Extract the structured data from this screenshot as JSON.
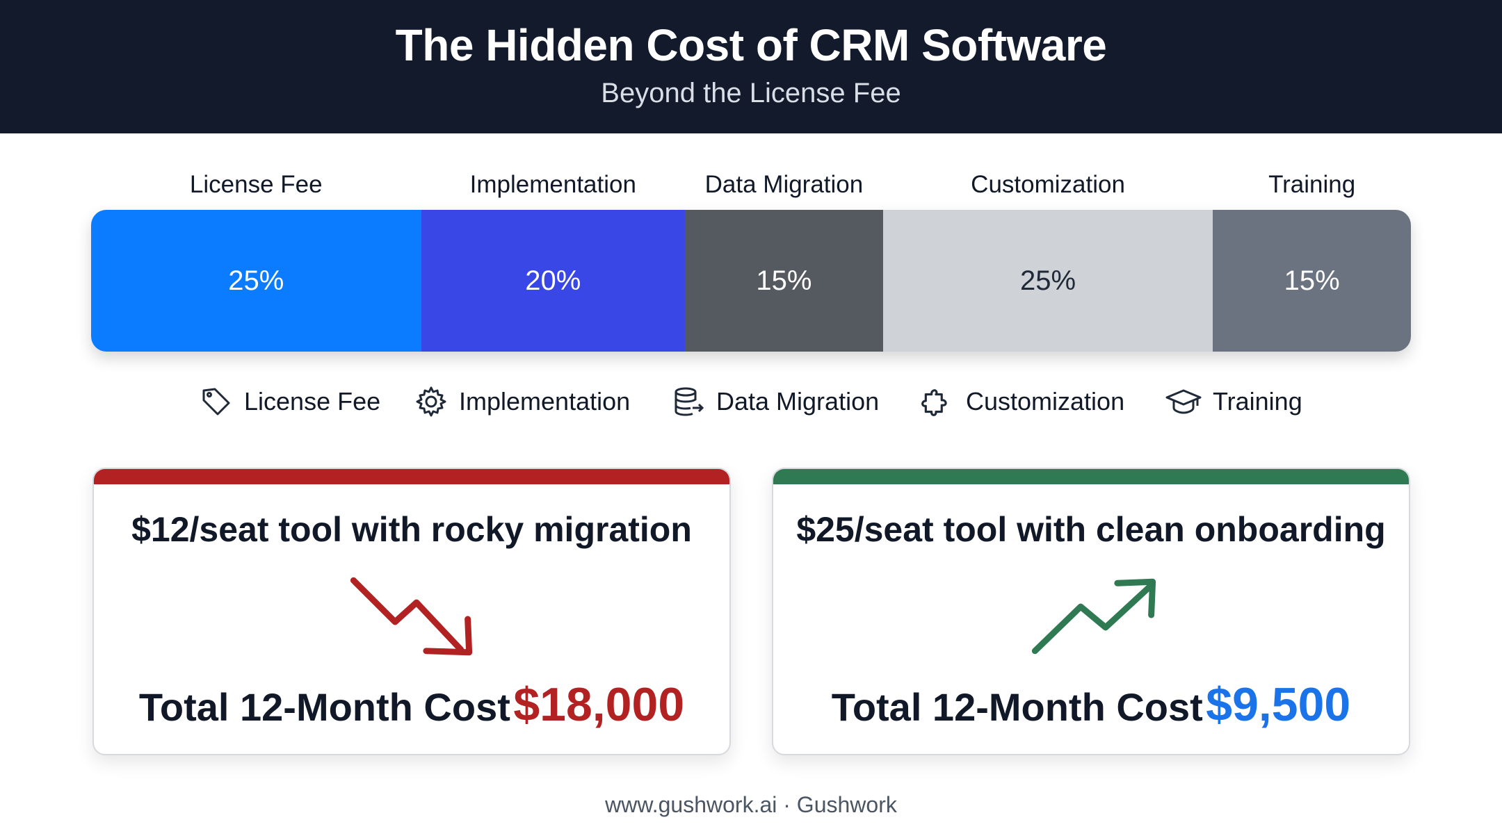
{
  "header": {
    "title": "The Hidden Cost of CRM Software",
    "subtitle": "Beyond the License Fee"
  },
  "chart_data": {
    "type": "bar",
    "orientation": "stacked-horizontal-100",
    "categories": [
      "License Fee",
      "Implementation",
      "Data Migration",
      "Customization",
      "Training"
    ],
    "values": [
      25,
      20,
      15,
      25,
      15
    ],
    "value_labels": [
      "25%",
      "20%",
      "15%",
      "25%",
      "15%"
    ],
    "unit": "%",
    "colors": [
      "#0b7bff",
      "#3847e6",
      "#555a60",
      "#cfd2d6",
      "#6b7280"
    ],
    "text_colors": [
      "#ffffff",
      "#ffffff",
      "#ffffff",
      "#1f2937",
      "#ffffff"
    ],
    "legend_position": "bottom"
  },
  "legend": [
    {
      "label": "License Fee",
      "icon": "tag-icon"
    },
    {
      "label": "Implementation",
      "icon": "gear-icon"
    },
    {
      "label": "Data Migration",
      "icon": "database-icon"
    },
    {
      "label": "Customization",
      "icon": "puzzle-icon"
    },
    {
      "label": "Training",
      "icon": "graduation-cap-icon"
    }
  ],
  "cards": [
    {
      "title": "$12/seat tool with rocky migration",
      "cost_label": "Total 12-Month Cost",
      "cost_value": "$18,000",
      "accent": "#b22222",
      "value_color": "#b22222",
      "trend_icon": "trend-down-icon"
    },
    {
      "title": "$25/seat tool with clean onboarding",
      "cost_label": "Total 12-Month Cost",
      "cost_value": "$9,500",
      "accent": "#2f7a52",
      "value_color": "#1a73e8",
      "trend_icon": "trend-up-icon"
    }
  ],
  "footer": {
    "text": "www.gushwork.ai · Gushwork"
  }
}
